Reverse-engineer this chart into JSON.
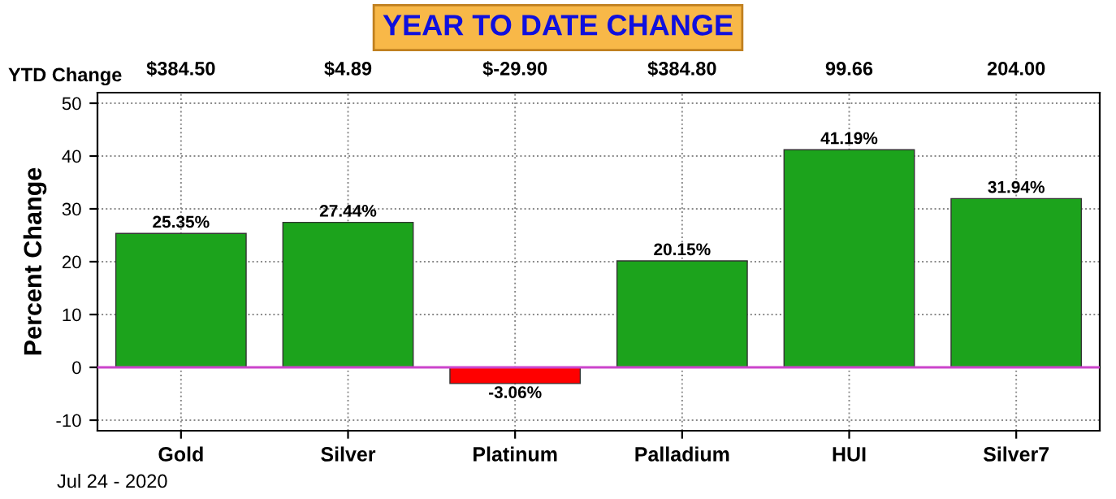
{
  "chart_data": {
    "type": "bar",
    "title": "YEAR TO DATE CHANGE",
    "ylabel": "Percent Change",
    "categories": [
      "Gold",
      "Silver",
      "Platinum",
      "Palladium",
      "HUI",
      "Silver7"
    ],
    "values": [
      25.35,
      27.44,
      -3.06,
      20.15,
      41.19,
      31.94
    ],
    "colors": [
      "#1ca31c",
      "#1ca31c",
      "#ff0000",
      "#1ca31c",
      "#1ca31c",
      "#1ca31c"
    ],
    "value_labels": [
      "25.35%",
      "27.44%",
      "-3.06%",
      "20.15%",
      "41.19%",
      "31.94%"
    ],
    "ylim": [
      -12,
      52
    ],
    "yticks": [
      -10,
      0,
      10,
      20,
      30,
      40,
      50
    ],
    "grid": true,
    "ref_lines": [
      {
        "axis": "y",
        "value": 0,
        "color": "#cc44cc"
      }
    ],
    "annotations": [
      "YTD Change",
      "$384.50",
      "$4.89",
      "$-29.90",
      "$384.80",
      "99.66",
      "204.00",
      "Jul 24 - 2020"
    ]
  }
}
